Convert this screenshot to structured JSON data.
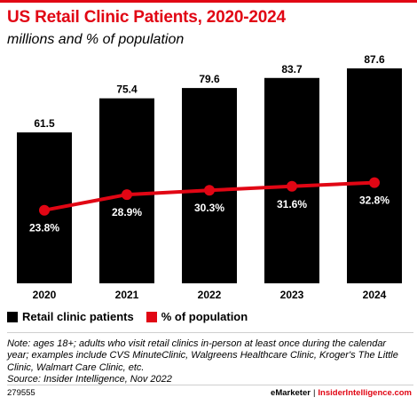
{
  "header": {
    "title": "US Retail Clinic Patients, 2020-2024",
    "subtitle": "millions and % of population"
  },
  "chart_data": {
    "type": "bar",
    "categories": [
      "2020",
      "2021",
      "2022",
      "2023",
      "2024"
    ],
    "series": [
      {
        "name": "Retail clinic patients",
        "type": "bar",
        "color": "#000000",
        "values": [
          61.5,
          75.4,
          79.6,
          83.7,
          87.6
        ],
        "labels": [
          "61.5",
          "75.4",
          "79.6",
          "83.7",
          "87.6"
        ]
      },
      {
        "name": "% of population",
        "type": "line",
        "color": "#e10614",
        "values": [
          23.8,
          28.9,
          30.3,
          31.6,
          32.8
        ],
        "labels": [
          "23.8%",
          "28.9%",
          "30.3%",
          "31.6%",
          "32.8%"
        ]
      }
    ],
    "ylim": [
      0,
      87.6
    ],
    "line_ylim": [
      0,
      70
    ],
    "grid": false,
    "legend_position": "bottom-left"
  },
  "legend": {
    "items": [
      {
        "label": "Retail clinic patients",
        "color": "#000000"
      },
      {
        "label": "% of population",
        "color": "#e10614"
      }
    ]
  },
  "note": {
    "lines": [
      "Note: ages 18+; adults who visit retail clinics in-person at least once during the calendar",
      "year; examples include CVS MinuteClinic, Walgreens Healthcare Clinic, Kroger's The Little",
      "Clinic, Walmart Care Clinic, etc.",
      "Source: Insider Intelligence, Nov 2022"
    ]
  },
  "footer": {
    "id": "279555",
    "brand": "eMarketer",
    "separator": "|",
    "site": "InsiderIntelligence.com"
  }
}
